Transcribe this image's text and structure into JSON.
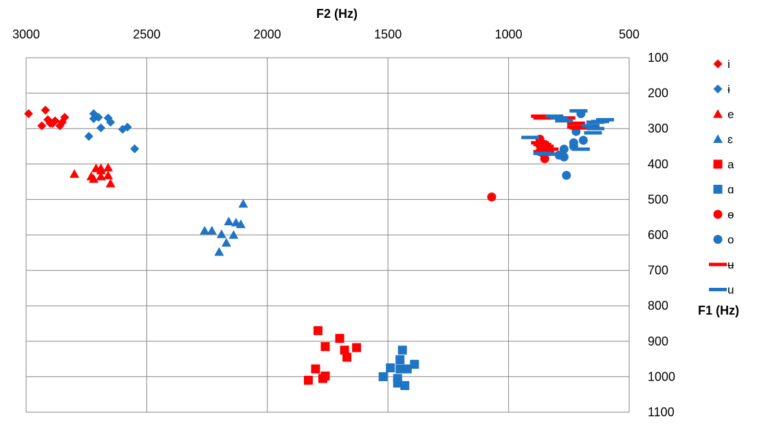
{
  "chart_data": {
    "type": "scatter",
    "title": "",
    "xlabel": "F2 (Hz)",
    "ylabel": "F1 (Hz)",
    "x_reversed": true,
    "y_reversed": true,
    "xlim": [
      500,
      3000
    ],
    "ylim": [
      100,
      1100
    ],
    "x_ticks": [
      "3000",
      "2500",
      "2000",
      "1500",
      "1000",
      "500"
    ],
    "y_ticks": [
      "100",
      "200",
      "300",
      "400",
      "500",
      "600",
      "700",
      "800",
      "900",
      "1000",
      "1100"
    ],
    "grid": true,
    "legend_position": "right",
    "colors": {
      "red": "#ff0000",
      "blue": "#1f74c4",
      "grid": "#868686"
    },
    "series": [
      {
        "name": "i",
        "marker": "diamond",
        "color": "#ff0000",
        "points": [
          [
            2990,
            258
          ],
          [
            2920,
            248
          ],
          [
            2910,
            275
          ],
          [
            2890,
            285
          ],
          [
            2880,
            278
          ],
          [
            2850,
            282
          ],
          [
            2935,
            292
          ],
          [
            2900,
            285
          ],
          [
            2860,
            292
          ],
          [
            2840,
            268
          ]
        ]
      },
      {
        "name": "ɨ",
        "marker": "diamond",
        "color": "#1f74c4",
        "points": [
          [
            2720,
            258
          ],
          [
            2720,
            272
          ],
          [
            2700,
            268
          ],
          [
            2660,
            270
          ],
          [
            2650,
            282
          ],
          [
            2740,
            322
          ],
          [
            2690,
            298
          ],
          [
            2600,
            302
          ],
          [
            2580,
            296
          ],
          [
            2550,
            357
          ]
        ]
      },
      {
        "name": "e",
        "marker": "triangle",
        "color": "#ff0000",
        "points": [
          [
            2800,
            428
          ],
          [
            2710,
            412
          ],
          [
            2690,
            418
          ],
          [
            2660,
            410
          ],
          [
            2730,
            435
          ],
          [
            2720,
            442
          ],
          [
            2690,
            435
          ],
          [
            2660,
            432
          ],
          [
            2650,
            455
          ],
          [
            2690,
            412
          ]
        ]
      },
      {
        "name": "ɛ",
        "marker": "triangle",
        "color": "#1f74c4",
        "points": [
          [
            2100,
            512
          ],
          [
            2160,
            562
          ],
          [
            2130,
            565
          ],
          [
            2110,
            570
          ],
          [
            2260,
            588
          ],
          [
            2230,
            588
          ],
          [
            2190,
            598
          ],
          [
            2140,
            600
          ],
          [
            2170,
            622
          ],
          [
            2200,
            648
          ]
        ]
      },
      {
        "name": "a",
        "marker": "square",
        "color": "#ff0000",
        "points": [
          [
            1790,
            870
          ],
          [
            1700,
            892
          ],
          [
            1760,
            915
          ],
          [
            1630,
            918
          ],
          [
            1680,
            925
          ],
          [
            1670,
            945
          ],
          [
            1800,
            978
          ],
          [
            1760,
            998
          ],
          [
            1770,
            1005
          ],
          [
            1830,
            1010
          ]
        ]
      },
      {
        "name": "ɑ",
        "marker": "square",
        "color": "#1f74c4",
        "points": [
          [
            1440,
            925
          ],
          [
            1450,
            952
          ],
          [
            1390,
            965
          ],
          [
            1490,
            975
          ],
          [
            1450,
            978
          ],
          [
            1420,
            978
          ],
          [
            1520,
            1000
          ],
          [
            1460,
            1005
          ],
          [
            1460,
            1018
          ],
          [
            1430,
            1025
          ]
        ]
      },
      {
        "name": "ɵ",
        "marker": "circle",
        "color": "#ff0000",
        "points": [
          [
            1070,
            493
          ],
          [
            870,
            330
          ],
          [
            850,
            345
          ],
          [
            840,
            358
          ],
          [
            830,
            365
          ],
          [
            870,
            365
          ],
          [
            860,
            368
          ],
          [
            850,
            385
          ]
        ]
      },
      {
        "name": "o",
        "marker": "circle",
        "color": "#1f74c4",
        "points": [
          [
            700,
            258
          ],
          [
            720,
            308
          ],
          [
            690,
            333
          ],
          [
            730,
            340
          ],
          [
            730,
            350
          ],
          [
            770,
            358
          ],
          [
            790,
            375
          ],
          [
            770,
            380
          ],
          [
            760,
            432
          ]
        ]
      },
      {
        "name": "ʉ",
        "marker": "dash",
        "color": "#ff0000",
        "points": [
          [
            870,
            265
          ],
          [
            820,
            268
          ],
          [
            860,
            270
          ],
          [
            760,
            270
          ],
          [
            720,
            285
          ],
          [
            720,
            295
          ],
          [
            710,
            298
          ],
          [
            870,
            340
          ],
          [
            860,
            345
          ],
          [
            850,
            350
          ],
          [
            830,
            358
          ],
          [
            860,
            365
          ]
        ]
      },
      {
        "name": "u",
        "marker": "dash",
        "color": "#1f74c4",
        "points": [
          [
            710,
            250
          ],
          [
            810,
            265
          ],
          [
            790,
            270
          ],
          [
            770,
            278
          ],
          [
            620,
            280
          ],
          [
            600,
            275
          ],
          [
            640,
            282
          ],
          [
            660,
            292
          ],
          [
            640,
            300
          ],
          [
            910,
            325
          ],
          [
            650,
            312
          ],
          [
            700,
            358
          ],
          [
            860,
            370
          ],
          [
            840,
            372
          ]
        ]
      }
    ]
  }
}
